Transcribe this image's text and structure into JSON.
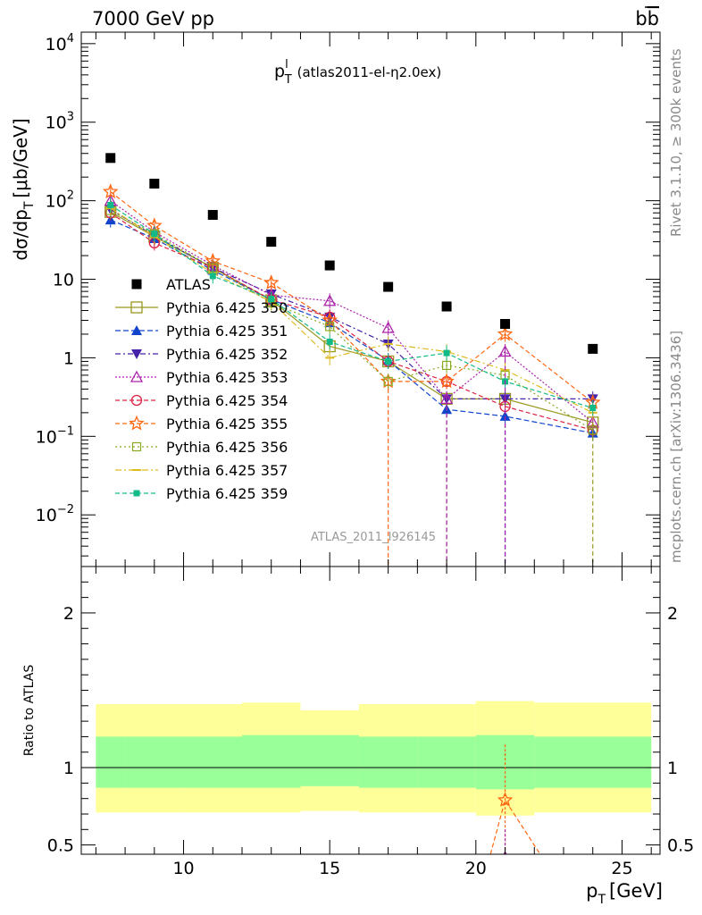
{
  "header": {
    "left": "7000 GeV pp",
    "right_main": "b",
    "right_bar": "b"
  },
  "side_labels": {
    "top": "Rivet 3.1.10, ≥ 300k events",
    "bottom": "mcplots.cern.ch [arXiv:1306.3436]"
  },
  "chart_data": {
    "type": "scatter",
    "title_main": "p",
    "title_sup": "l",
    "title_sub": "T",
    "title_rest": "(atlas2011-el-η2.0ex)",
    "watermark": "ATLAS_2011_I926145",
    "ylabel_main": "dσ/dp",
    "ylabel_sub": "T",
    "ylabel_rest": "[μb/GeV]",
    "xlabel_main": "p",
    "xlabel_sub": "T",
    "xlabel_rest": "[GeV]",
    "ratio_ylabel": "Ratio to ATLAS",
    "y_scale": "log",
    "xlim": [
      6.5,
      26.3
    ],
    "ylim": [
      0.0022,
      14000
    ],
    "ratio_ylim": [
      0.44,
      2.3
    ],
    "ratio_ticks": [
      {
        "v": 0.5,
        "label": "0.5"
      },
      {
        "v": 1,
        "label": "1"
      },
      {
        "v": 2,
        "label": "2"
      }
    ],
    "x_ticks": [
      {
        "v": 10,
        "label": "10"
      },
      {
        "v": 15,
        "label": "15"
      },
      {
        "v": 20,
        "label": "20"
      },
      {
        "v": 25,
        "label": "25"
      }
    ],
    "y_ticks": [
      {
        "v": 0.01,
        "base": "10",
        "exp": "−2"
      },
      {
        "v": 0.1,
        "base": "10",
        "exp": "−1"
      },
      {
        "v": 1,
        "base": "1",
        "exp": ""
      },
      {
        "v": 10,
        "base": "10",
        "exp": ""
      },
      {
        "v": 100,
        "base": "10",
        "exp": "2"
      },
      {
        "v": 1000,
        "base": "10",
        "exp": "3"
      },
      {
        "v": 10000,
        "base": "10",
        "exp": "4"
      }
    ],
    "x": [
      7.5,
      9,
      11,
      13,
      15,
      17,
      19,
      21,
      24
    ],
    "bins": [
      [
        7,
        8
      ],
      [
        8,
        10
      ],
      [
        10,
        12
      ],
      [
        12,
        14
      ],
      [
        14,
        16
      ],
      [
        16,
        18
      ],
      [
        18,
        20
      ],
      [
        20,
        22
      ],
      [
        22,
        26
      ]
    ],
    "atlas": {
      "name": "ATLAS",
      "color": "#000000",
      "values": [
        350,
        165,
        66,
        30,
        15,
        8,
        4.5,
        2.7,
        1.3
      ]
    },
    "bands": {
      "inner_color": "#99ff99",
      "outer_color": "#ffff99",
      "inner": [
        [
          0.87,
          1.2
        ],
        [
          0.87,
          1.2
        ],
        [
          0.87,
          1.2
        ],
        [
          0.87,
          1.21
        ],
        [
          0.88,
          1.21
        ],
        [
          0.87,
          1.2
        ],
        [
          0.87,
          1.2
        ],
        [
          0.86,
          1.21
        ],
        [
          0.87,
          1.2
        ]
      ],
      "outer": [
        [
          0.71,
          1.41
        ],
        [
          0.71,
          1.41
        ],
        [
          0.71,
          1.41
        ],
        [
          0.71,
          1.42
        ],
        [
          0.72,
          1.37
        ],
        [
          0.71,
          1.41
        ],
        [
          0.71,
          1.41
        ],
        [
          0.69,
          1.43
        ],
        [
          0.71,
          1.42
        ]
      ]
    },
    "series": [
      {
        "name": "Pythia 6.425 350",
        "color": "#999922",
        "marker": "square-open",
        "dash": "",
        "values": [
          72,
          35,
          14,
          5.4,
          1.4,
          0.9,
          0.3,
          0.3,
          0.15
        ]
      },
      {
        "name": "Pythia 6.425 351",
        "color": "#1144cc",
        "marker": "triangle-up",
        "dash": "6,3",
        "values": [
          57,
          33,
          13,
          5.5,
          2.8,
          0.92,
          0.22,
          0.18,
          0.11
        ]
      },
      {
        "name": "Pythia 6.425 352",
        "color": "#4422aa",
        "marker": "triangle-down",
        "dash": "6,3,2,3",
        "values": [
          77,
          36,
          14,
          6.5,
          3.3,
          1.5,
          0.3,
          0.3,
          0.3
        ]
      },
      {
        "name": "Pythia 6.425 353",
        "color": "#aa22aa",
        "marker": "triangle-open",
        "dash": "2,2",
        "values": [
          100,
          40,
          15,
          6.3,
          5.3,
          2.4,
          0.3,
          1.2,
          0.15
        ]
      },
      {
        "name": "Pythia 6.425 354",
        "color": "#dd2244",
        "marker": "circle-open",
        "dash": "5,3",
        "values": [
          70,
          29,
          14,
          5.5,
          3.3,
          0.9,
          0.5,
          0.24,
          0.12
        ]
      },
      {
        "name": "Pythia 6.425 355",
        "color": "#ff6611",
        "marker": "star-open",
        "dash": "5,3",
        "values": [
          130,
          48,
          17,
          9,
          3,
          0.5,
          0.5,
          2,
          0.27
        ]
      },
      {
        "name": "Pythia 6.425 356",
        "color": "#88aa22",
        "marker": "square-open-small",
        "dash": "2,3",
        "values": [
          75,
          38,
          14,
          5,
          2.5,
          0.5,
          0.8,
          0.6,
          0.12
        ]
      },
      {
        "name": "Pythia 6.425 357",
        "color": "#ddbb22",
        "marker": "dash",
        "dash": "7,3,2,3",
        "values": [
          80,
          35,
          12,
          5.2,
          1,
          1.5,
          1.2,
          0.7,
          0.2
        ]
      },
      {
        "name": "Pythia 6.425 359",
        "color": "#11bb88",
        "marker": "square-small",
        "dash": "5,3",
        "values": [
          88,
          38,
          11,
          5.6,
          1.6,
          0.9,
          1.15,
          0.5,
          0.23
        ]
      }
    ],
    "ratio_points": [
      {
        "series": 5,
        "x": 21,
        "y": 0.79,
        "err": [
          0.45,
          1.15
        ]
      },
      {
        "series": 3,
        "x": 21,
        "y": 0.42,
        "err": [
          0.3,
          0.6
        ]
      }
    ]
  }
}
